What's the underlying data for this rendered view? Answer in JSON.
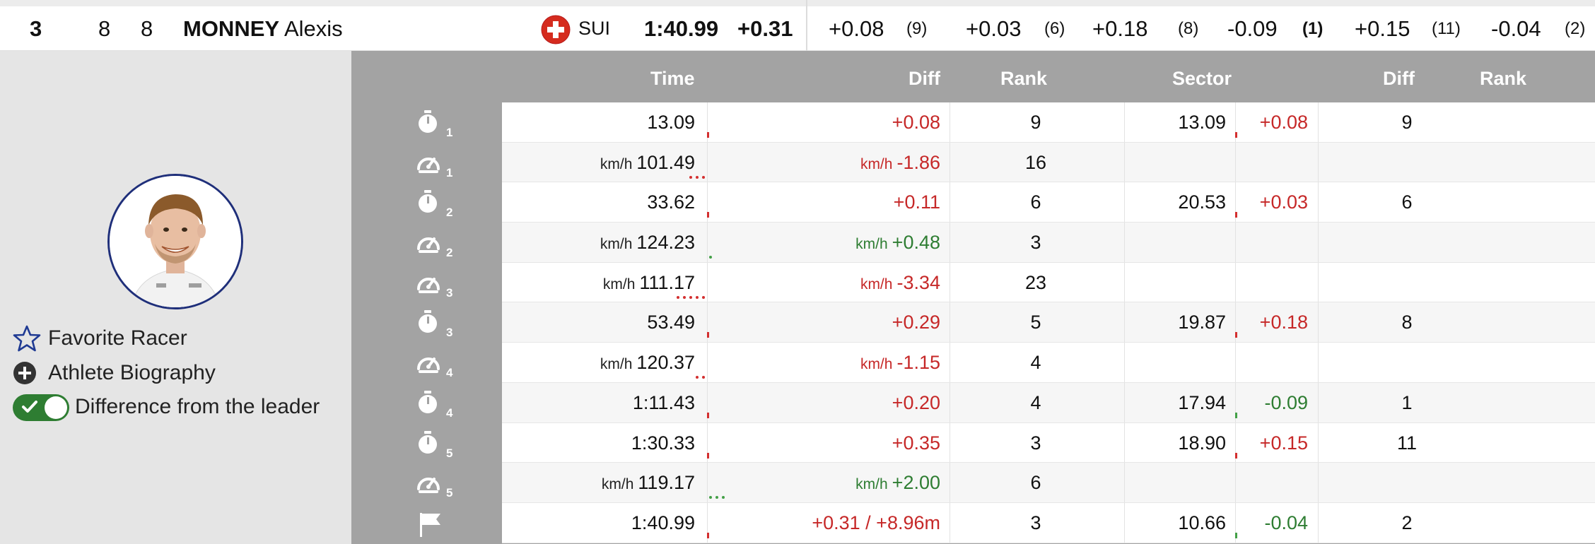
{
  "racer": {
    "rank": "3",
    "bib": "8",
    "start": "8",
    "last_name": "MONNEY",
    "first_name": "Alexis",
    "nation": "SUI",
    "time": "1:40.99",
    "diff": "+0.31",
    "splits": [
      {
        "diff": "+0.08",
        "rank": "(9)",
        "bold": false
      },
      {
        "diff": "+0.03",
        "rank": "(6)",
        "bold": false
      },
      {
        "diff": "+0.18",
        "rank": "(8)",
        "bold": false
      },
      {
        "diff": "-0.09",
        "rank": "(1)",
        "bold": true
      },
      {
        "diff": "+0.15",
        "rank": "(11)",
        "bold": false
      },
      {
        "diff": "-0.04",
        "rank": "(2)",
        "bold": false
      }
    ]
  },
  "colors": {
    "red": "#c62828",
    "green": "#2e7d32",
    "header_bg": "#a3a3a3",
    "panel_bg": "#e5e5e5"
  },
  "actions": {
    "favorite": "Favorite Racer",
    "biography": "Athlete Biography",
    "difference": "Difference from the leader",
    "difference_on": true
  },
  "headers": {
    "time": "Time",
    "diff": "Diff",
    "rank": "Rank",
    "sector": "Sector",
    "sector_diff": "Diff",
    "sector_rank": "Rank"
  },
  "rows": [
    {
      "icon": "stopwatch-icon",
      "num": "1",
      "unit": "",
      "time": "13.09",
      "diff_unit": "",
      "diff": "+0.08",
      "diff_color": "red",
      "rank": "9",
      "sector": "13.09",
      "sector_diff": "+0.08",
      "sector_diff_color": "red",
      "sector_rank": "9",
      "dots": 0,
      "dot_color": "r",
      "tick": "r",
      "stick": "r"
    },
    {
      "icon": "speedometer-icon",
      "num": "1",
      "unit": "km/h",
      "time": "101.49",
      "diff_unit": "km/h",
      "diff": "-1.86",
      "diff_color": "red",
      "rank": "16",
      "sector": "",
      "sector_diff": "",
      "sector_diff_color": "",
      "sector_rank": "",
      "dots": 3,
      "dot_color": "r",
      "tick": "",
      "stick": ""
    },
    {
      "icon": "stopwatch-icon",
      "num": "2",
      "unit": "",
      "time": "33.62",
      "diff_unit": "",
      "diff": "+0.11",
      "diff_color": "red",
      "rank": "6",
      "sector": "20.53",
      "sector_diff": "+0.03",
      "sector_diff_color": "red",
      "sector_rank": "6",
      "dots": 0,
      "dot_color": "r",
      "tick": "r",
      "stick": "r"
    },
    {
      "icon": "speedometer-icon",
      "num": "2",
      "unit": "km/h",
      "time": "124.23",
      "diff_unit": "km/h",
      "diff": "+0.48",
      "diff_color": "green",
      "rank": "3",
      "sector": "",
      "sector_diff": "",
      "sector_diff_color": "",
      "sector_rank": "",
      "dots": 1,
      "dot_color": "g",
      "tick": "",
      "stick": ""
    },
    {
      "icon": "speedometer-icon",
      "num": "3",
      "unit": "km/h",
      "time": "111.17",
      "diff_unit": "km/h",
      "diff": "-3.34",
      "diff_color": "red",
      "rank": "23",
      "sector": "",
      "sector_diff": "",
      "sector_diff_color": "",
      "sector_rank": "",
      "dots": 5,
      "dot_color": "r",
      "tick": "",
      "stick": ""
    },
    {
      "icon": "stopwatch-icon",
      "num": "3",
      "unit": "",
      "time": "53.49",
      "diff_unit": "",
      "diff": "+0.29",
      "diff_color": "red",
      "rank": "5",
      "sector": "19.87",
      "sector_diff": "+0.18",
      "sector_diff_color": "red",
      "sector_rank": "8",
      "dots": 0,
      "dot_color": "r",
      "tick": "r",
      "stick": "r"
    },
    {
      "icon": "speedometer-icon",
      "num": "4",
      "unit": "km/h",
      "time": "120.37",
      "diff_unit": "km/h",
      "diff": "-1.15",
      "diff_color": "red",
      "rank": "4",
      "sector": "",
      "sector_diff": "",
      "sector_diff_color": "",
      "sector_rank": "",
      "dots": 2,
      "dot_color": "r",
      "tick": "",
      "stick": ""
    },
    {
      "icon": "stopwatch-icon",
      "num": "4",
      "unit": "",
      "time": "1:11.43",
      "diff_unit": "",
      "diff": "+0.20",
      "diff_color": "red",
      "rank": "4",
      "sector": "17.94",
      "sector_diff": "-0.09",
      "sector_diff_color": "green",
      "sector_rank": "1",
      "dots": 0,
      "dot_color": "r",
      "tick": "r",
      "stick": "g"
    },
    {
      "icon": "stopwatch-icon",
      "num": "5",
      "unit": "",
      "time": "1:30.33",
      "diff_unit": "",
      "diff": "+0.35",
      "diff_color": "red",
      "rank": "3",
      "sector": "18.90",
      "sector_diff": "+0.15",
      "sector_diff_color": "red",
      "sector_rank": "11",
      "dots": 0,
      "dot_color": "r",
      "tick": "r",
      "stick": "r"
    },
    {
      "icon": "speedometer-icon",
      "num": "5",
      "unit": "km/h",
      "time": "119.17",
      "diff_unit": "km/h",
      "diff": "+2.00",
      "diff_color": "green",
      "rank": "6",
      "sector": "",
      "sector_diff": "",
      "sector_diff_color": "",
      "sector_rank": "",
      "dots": 3,
      "dot_color": "g",
      "tick": "",
      "stick": ""
    },
    {
      "icon": "finish-flag-icon",
      "num": "",
      "unit": "",
      "time": "1:40.99",
      "diff_unit": "",
      "diff": "+0.31 / +8.96m",
      "diff_color": "red",
      "rank": "3",
      "sector": "10.66",
      "sector_diff": "-0.04",
      "sector_diff_color": "green",
      "sector_rank": "2",
      "dots": 0,
      "dot_color": "r",
      "tick": "r",
      "stick": "g"
    }
  ]
}
